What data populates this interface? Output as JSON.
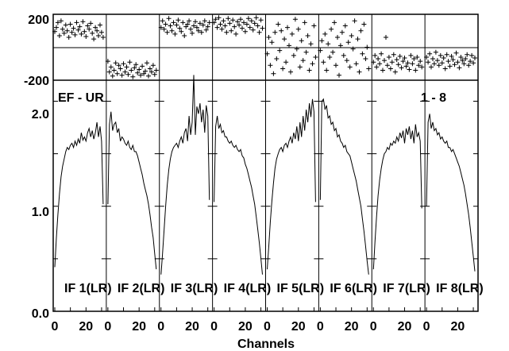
{
  "chart_data": {
    "type": "line",
    "title": "EF - UR",
    "range_label": "1 - 8",
    "xlabel": "Channels",
    "phase_ylim": [
      -200,
      200
    ],
    "phase_ticks": [
      "200",
      "-200"
    ],
    "amp_ylim": [
      0.0,
      2.2
    ],
    "amp_ticks": [
      "2.0",
      "1.0",
      "0.0"
    ],
    "x_ticks": [
      "0",
      "20"
    ],
    "x_range": [
      0,
      32
    ],
    "panels": [
      {
        "label": "IF 1(LR)",
        "amplitude": [
          0.42,
          0.7,
          0.92,
          1.12,
          1.28,
          1.38,
          1.45,
          1.52,
          1.56,
          1.54,
          1.58,
          1.6,
          1.56,
          1.62,
          1.58,
          1.64,
          1.6,
          1.7,
          1.63,
          1.66,
          1.62,
          1.7,
          1.74,
          1.66,
          1.72,
          1.64,
          1.7,
          1.8,
          1.66,
          1.76,
          1.62,
          1.02
        ],
        "phase": [
          95,
          120,
          150,
          70,
          160,
          110,
          85,
          135,
          100,
          60,
          140,
          90,
          115,
          75,
          150,
          105,
          125,
          80,
          155,
          95,
          65,
          130,
          110,
          145,
          85,
          50,
          120,
          100,
          70,
          135,
          90,
          60
        ]
      },
      {
        "label": "IF 2(LR)",
        "amplitude": [
          1.02,
          1.78,
          1.9,
          1.72,
          1.78,
          1.8,
          1.7,
          1.74,
          1.62,
          1.66,
          1.64,
          1.6,
          1.58,
          1.62,
          1.56,
          1.54,
          1.58,
          1.52,
          1.52,
          1.48,
          1.42,
          1.36,
          1.3,
          1.22,
          1.16,
          1.1,
          1.02,
          0.92,
          0.8,
          0.7,
          0.55,
          0.4
        ],
        "phase": [
          -85,
          -150,
          -120,
          -175,
          -140,
          -95,
          -160,
          -110,
          -130,
          -170,
          -100,
          -150,
          -120,
          -165,
          -90,
          -140,
          -180,
          -125,
          -105,
          -155,
          -135,
          -170,
          -115,
          -160,
          -145,
          -95,
          -175,
          -130,
          -150,
          -110,
          -165,
          -140
        ]
      },
      {
        "label": "IF 3(LR)",
        "amplitude": [
          0.35,
          0.55,
          0.78,
          1.0,
          1.2,
          1.35,
          1.45,
          1.52,
          1.56,
          1.58,
          1.6,
          1.56,
          1.62,
          1.66,
          1.6,
          1.7,
          1.74,
          1.62,
          1.86,
          1.68,
          1.8,
          2.25,
          1.68,
          1.95,
          1.88,
          1.98,
          1.8,
          1.92,
          1.7,
          1.96,
          1.86,
          1.06
        ],
        "phase": [
          120,
          160,
          110,
          140,
          90,
          175,
          130,
          100,
          150,
          80,
          135,
          165,
          115,
          95,
          150,
          70,
          125,
          140,
          160,
          110,
          85,
          130,
          155,
          120,
          100,
          145,
          90,
          135,
          160,
          105,
          125,
          150
        ]
      },
      {
        "label": "IF 4(LR)",
        "amplitude": [
          1.04,
          1.76,
          1.86,
          1.74,
          1.78,
          1.7,
          1.72,
          1.66,
          1.66,
          1.62,
          1.6,
          1.62,
          1.58,
          1.56,
          1.58,
          1.54,
          1.52,
          1.54,
          1.48,
          1.46,
          1.4,
          1.36,
          1.3,
          1.24,
          1.18,
          1.1,
          1.02,
          0.9,
          0.78,
          0.65,
          0.5,
          0.35
        ],
        "phase": [
          150,
          170,
          120,
          180,
          140,
          110,
          160,
          130,
          90,
          175,
          145,
          100,
          165,
          125,
          80,
          155,
          135,
          170,
          115,
          150,
          95,
          140,
          175,
          120,
          160,
          105,
          145,
          180,
          130,
          90,
          165,
          115
        ]
      },
      {
        "label": "IF 5(LR)",
        "amplitude": [
          0.4,
          0.62,
          0.85,
          1.05,
          1.22,
          1.36,
          1.45,
          1.5,
          1.54,
          1.56,
          1.52,
          1.58,
          1.6,
          1.56,
          1.62,
          1.66,
          1.6,
          1.7,
          1.64,
          1.76,
          1.62,
          1.8,
          1.66,
          1.86,
          1.72,
          1.92,
          1.8,
          1.98,
          1.85,
          2.02,
          1.9,
          1.04
        ],
        "phase": [
          -40,
          60,
          -110,
          30,
          -160,
          90,
          -70,
          140,
          -20,
          100,
          -130,
          50,
          -90,
          120,
          10,
          -150,
          80,
          -50,
          170,
          -10,
          110,
          -120,
          40,
          -80,
          150,
          -30,
          70,
          -140,
          20,
          -100,
          130,
          -60
        ]
      },
      {
        "label": "IF 6(LR)",
        "amplitude": [
          1.06,
          2.0,
          2.02,
          1.92,
          1.96,
          1.84,
          1.86,
          1.78,
          1.8,
          1.72,
          1.74,
          1.66,
          1.68,
          1.62,
          1.6,
          1.56,
          1.58,
          1.52,
          1.5,
          1.48,
          1.42,
          1.36,
          1.3,
          1.24,
          1.16,
          1.08,
          1.0,
          0.88,
          0.76,
          0.62,
          0.48,
          0.35
        ],
        "phase": [
          -20,
          40,
          -90,
          80,
          -140,
          20,
          -60,
          110,
          -30,
          150,
          -110,
          60,
          -170,
          10,
          90,
          -50,
          130,
          -80,
          30,
          -120,
          70,
          -10,
          160,
          -100,
          50,
          -150,
          100,
          -40,
          140,
          -70,
          0,
          -130
        ]
      },
      {
        "label": "IF 7(LR)",
        "amplitude": [
          0.4,
          0.66,
          0.9,
          1.1,
          1.25,
          1.36,
          1.44,
          1.5,
          1.52,
          1.56,
          1.54,
          1.6,
          1.58,
          1.62,
          1.6,
          1.66,
          1.62,
          1.7,
          1.65,
          1.72,
          1.6,
          1.74,
          1.68,
          1.76,
          1.64,
          1.72,
          1.6,
          1.78,
          1.66,
          1.7,
          1.62,
          0.98
        ],
        "phase": [
          -90,
          -50,
          -120,
          -70,
          -100,
          -40,
          -140,
          -80,
          60,
          -110,
          -60,
          -130,
          -90,
          -45,
          -150,
          -75,
          -105,
          -55,
          -125,
          -85,
          -65,
          -115,
          -95,
          -135,
          -50,
          -100,
          -70,
          -140,
          -60,
          -110,
          -85,
          -120
        ]
      },
      {
        "label": "IF 8(LR)",
        "amplitude": [
          1.0,
          1.8,
          1.88,
          1.74,
          1.8,
          1.72,
          1.74,
          1.68,
          1.7,
          1.64,
          1.66,
          1.62,
          1.6,
          1.62,
          1.56,
          1.56,
          1.52,
          1.54,
          1.5,
          1.46,
          1.42,
          1.38,
          1.32,
          1.26,
          1.2,
          1.12,
          1.02,
          0.92,
          0.8,
          0.66,
          0.52,
          0.38
        ],
        "phase": [
          -60,
          -90,
          -40,
          -120,
          -70,
          -100,
          -30,
          -80,
          -110,
          -50,
          -95,
          -65,
          -130,
          -45,
          -85,
          -115,
          -55,
          -75,
          -105,
          -35,
          -90,
          -125,
          -60,
          -80,
          -100,
          -70,
          -45,
          -110,
          -85,
          -50,
          -95,
          -65
        ]
      }
    ]
  }
}
